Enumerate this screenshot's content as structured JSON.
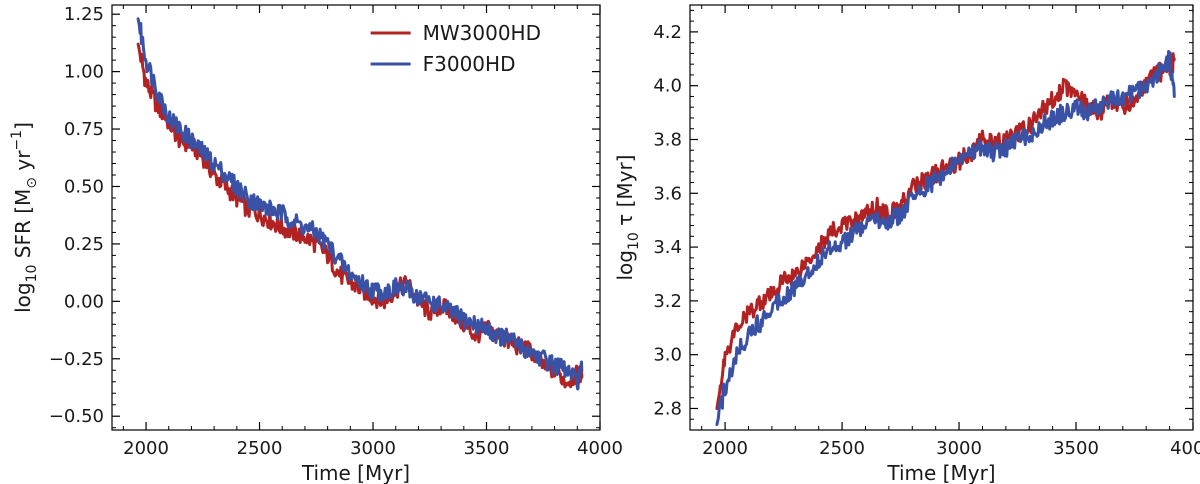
{
  "chart_data": [
    {
      "type": "line",
      "title": "",
      "xlabel": "Time [Myr]",
      "ylabel": "log10 SFR [M⊙ yr⁻¹]",
      "ylabel_parts": {
        "pre": "log",
        "sub": "10",
        "mid": " SFR [M",
        "sub2": "⊙",
        "mid2": " yr",
        "sup": "−1",
        "post": "]"
      },
      "xlim": [
        1850,
        4000
      ],
      "ylim": [
        -0.56,
        1.29
      ],
      "xticks": [
        2000,
        2500,
        3000,
        3500,
        4000
      ],
      "yticks": [
        -0.5,
        -0.25,
        0.0,
        0.25,
        0.5,
        0.75,
        1.0,
        1.25
      ],
      "ytick_labels": [
        "−0.50",
        "−0.25",
        "0.00",
        "0.25",
        "0.50",
        "0.75",
        "1.00",
        "1.25"
      ],
      "legend": {
        "placement": "top-right",
        "entries": [
          "MW3000HD",
          "F3000HD"
        ]
      },
      "series": [
        {
          "name": "MW3000HD",
          "color": "#b22222",
          "x": [
            1965,
            2000,
            2050,
            2100,
            2150,
            2200,
            2250,
            2300,
            2350,
            2400,
            2450,
            2500,
            2550,
            2600,
            2650,
            2700,
            2750,
            2800,
            2850,
            2900,
            2950,
            3000,
            3050,
            3100,
            3150,
            3200,
            3250,
            3300,
            3350,
            3400,
            3450,
            3500,
            3550,
            3600,
            3650,
            3700,
            3750,
            3800,
            3850,
            3900,
            3920
          ],
          "values": [
            1.12,
            0.95,
            0.85,
            0.78,
            0.7,
            0.68,
            0.63,
            0.55,
            0.5,
            0.45,
            0.4,
            0.38,
            0.35,
            0.32,
            0.3,
            0.28,
            0.25,
            0.2,
            0.12,
            0.08,
            0.05,
            0.02,
            0.0,
            0.05,
            0.08,
            0.0,
            -0.05,
            -0.02,
            -0.05,
            -0.1,
            -0.15,
            -0.12,
            -0.15,
            -0.18,
            -0.2,
            -0.22,
            -0.28,
            -0.3,
            -0.35,
            -0.32,
            -0.33
          ]
        },
        {
          "name": "F3000HD",
          "color": "#3a52a6",
          "x": [
            1965,
            2000,
            2050,
            2100,
            2150,
            2200,
            2250,
            2300,
            2350,
            2400,
            2450,
            2500,
            2550,
            2600,
            2650,
            2700,
            2750,
            2800,
            2850,
            2900,
            2950,
            3000,
            3050,
            3100,
            3150,
            3200,
            3250,
            3300,
            3350,
            3400,
            3450,
            3500,
            3550,
            3600,
            3650,
            3700,
            3750,
            3800,
            3850,
            3900,
            3920
          ],
          "values": [
            1.23,
            1.05,
            0.92,
            0.8,
            0.75,
            0.7,
            0.65,
            0.6,
            0.55,
            0.5,
            0.45,
            0.42,
            0.4,
            0.38,
            0.35,
            0.32,
            0.3,
            0.25,
            0.18,
            0.12,
            0.08,
            0.05,
            0.04,
            0.06,
            0.05,
            0.02,
            0.0,
            -0.02,
            -0.05,
            -0.08,
            -0.1,
            -0.12,
            -0.15,
            -0.16,
            -0.2,
            -0.22,
            -0.25,
            -0.28,
            -0.3,
            -0.35,
            -0.3
          ]
        }
      ]
    },
    {
      "type": "line",
      "title": "",
      "xlabel": "Time [Myr]",
      "ylabel": "log10 τ [Myr]",
      "ylabel_parts": {
        "pre": "log",
        "sub": "10",
        "post": " τ [Myr]"
      },
      "xlim": [
        1850,
        4000
      ],
      "ylim": [
        2.72,
        4.3
      ],
      "xticks": [
        2000,
        2500,
        3000,
        3500,
        4000
      ],
      "yticks": [
        2.8,
        3.0,
        3.2,
        3.4,
        3.6,
        3.8,
        4.0,
        4.2
      ],
      "ytick_labels": [
        "2.8",
        "3.0",
        "3.2",
        "3.4",
        "3.6",
        "3.8",
        "4.0",
        "4.2"
      ],
      "series": [
        {
          "name": "MW3000HD",
          "color": "#b22222",
          "x": [
            1965,
            2000,
            2050,
            2100,
            2150,
            2200,
            2250,
            2300,
            2350,
            2400,
            2450,
            2500,
            2550,
            2600,
            2650,
            2700,
            2750,
            2800,
            2850,
            2900,
            2950,
            3000,
            3050,
            3100,
            3150,
            3200,
            3250,
            3300,
            3350,
            3400,
            3450,
            3500,
            3550,
            3600,
            3650,
            3700,
            3750,
            3800,
            3850,
            3900,
            3920
          ],
          "values": [
            2.8,
            3.0,
            3.1,
            3.15,
            3.2,
            3.22,
            3.28,
            3.3,
            3.35,
            3.4,
            3.45,
            3.48,
            3.5,
            3.52,
            3.55,
            3.52,
            3.55,
            3.62,
            3.65,
            3.67,
            3.7,
            3.72,
            3.75,
            3.8,
            3.78,
            3.8,
            3.82,
            3.85,
            3.9,
            3.95,
            4.0,
            3.98,
            3.92,
            3.9,
            3.95,
            3.92,
            3.95,
            4.0,
            4.05,
            4.05,
            4.1
          ]
        },
        {
          "name": "F3000HD",
          "color": "#3a52a6",
          "x": [
            1965,
            2000,
            2050,
            2100,
            2150,
            2200,
            2250,
            2300,
            2350,
            2400,
            2450,
            2500,
            2550,
            2600,
            2650,
            2700,
            2750,
            2800,
            2850,
            2900,
            2950,
            3000,
            3050,
            3100,
            3150,
            3200,
            3250,
            3300,
            3350,
            3400,
            3450,
            3500,
            3550,
            3600,
            3650,
            3700,
            3750,
            3800,
            3850,
            3900,
            3920
          ],
          "values": [
            2.74,
            2.88,
            3.0,
            3.08,
            3.12,
            3.18,
            3.22,
            3.25,
            3.3,
            3.35,
            3.4,
            3.42,
            3.45,
            3.48,
            3.5,
            3.5,
            3.52,
            3.58,
            3.62,
            3.65,
            3.68,
            3.72,
            3.75,
            3.78,
            3.75,
            3.77,
            3.8,
            3.82,
            3.85,
            3.88,
            3.9,
            3.92,
            3.9,
            3.92,
            3.95,
            3.95,
            3.98,
            4.0,
            4.05,
            4.1,
            3.96
          ]
        }
      ]
    }
  ]
}
